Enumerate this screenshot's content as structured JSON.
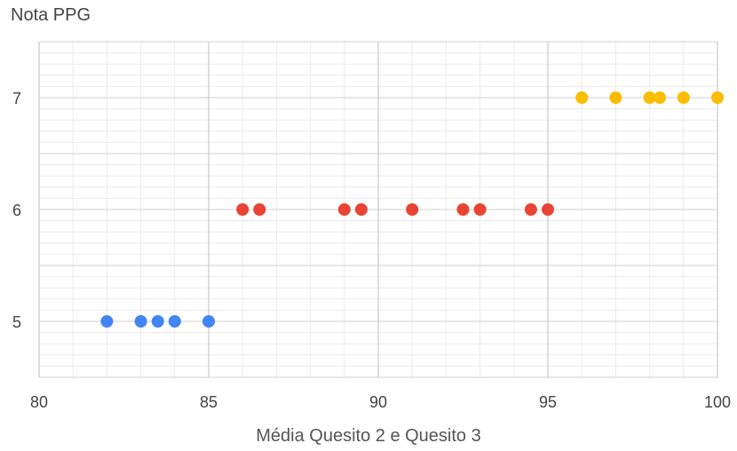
{
  "chart_data": {
    "type": "scatter",
    "title": "",
    "ylabel": "Nota PPG",
    "xlabel": "Média Quesito 2 e Quesito 3",
    "xlim": [
      80,
      100
    ],
    "ylim": [
      4.5,
      7.5
    ],
    "xticks": [
      80,
      85,
      90,
      95,
      100
    ],
    "yticks": [
      5,
      6,
      7
    ],
    "grid": true,
    "series": [
      {
        "color": "#4285F4",
        "x": [
          82,
          83,
          83.5,
          84,
          85
        ],
        "y": [
          5,
          5,
          5,
          5,
          5
        ]
      },
      {
        "color": "#EA4335",
        "x": [
          86,
          86.5,
          89,
          89.5,
          91,
          92.5,
          93,
          94.5,
          95
        ],
        "y": [
          6,
          6,
          6,
          6,
          6,
          6,
          6,
          6,
          6
        ]
      },
      {
        "color": "#FBBC04",
        "x": [
          96,
          97,
          98,
          98.3,
          99,
          100
        ],
        "y": [
          7,
          7,
          7,
          7,
          7,
          7
        ]
      }
    ]
  }
}
